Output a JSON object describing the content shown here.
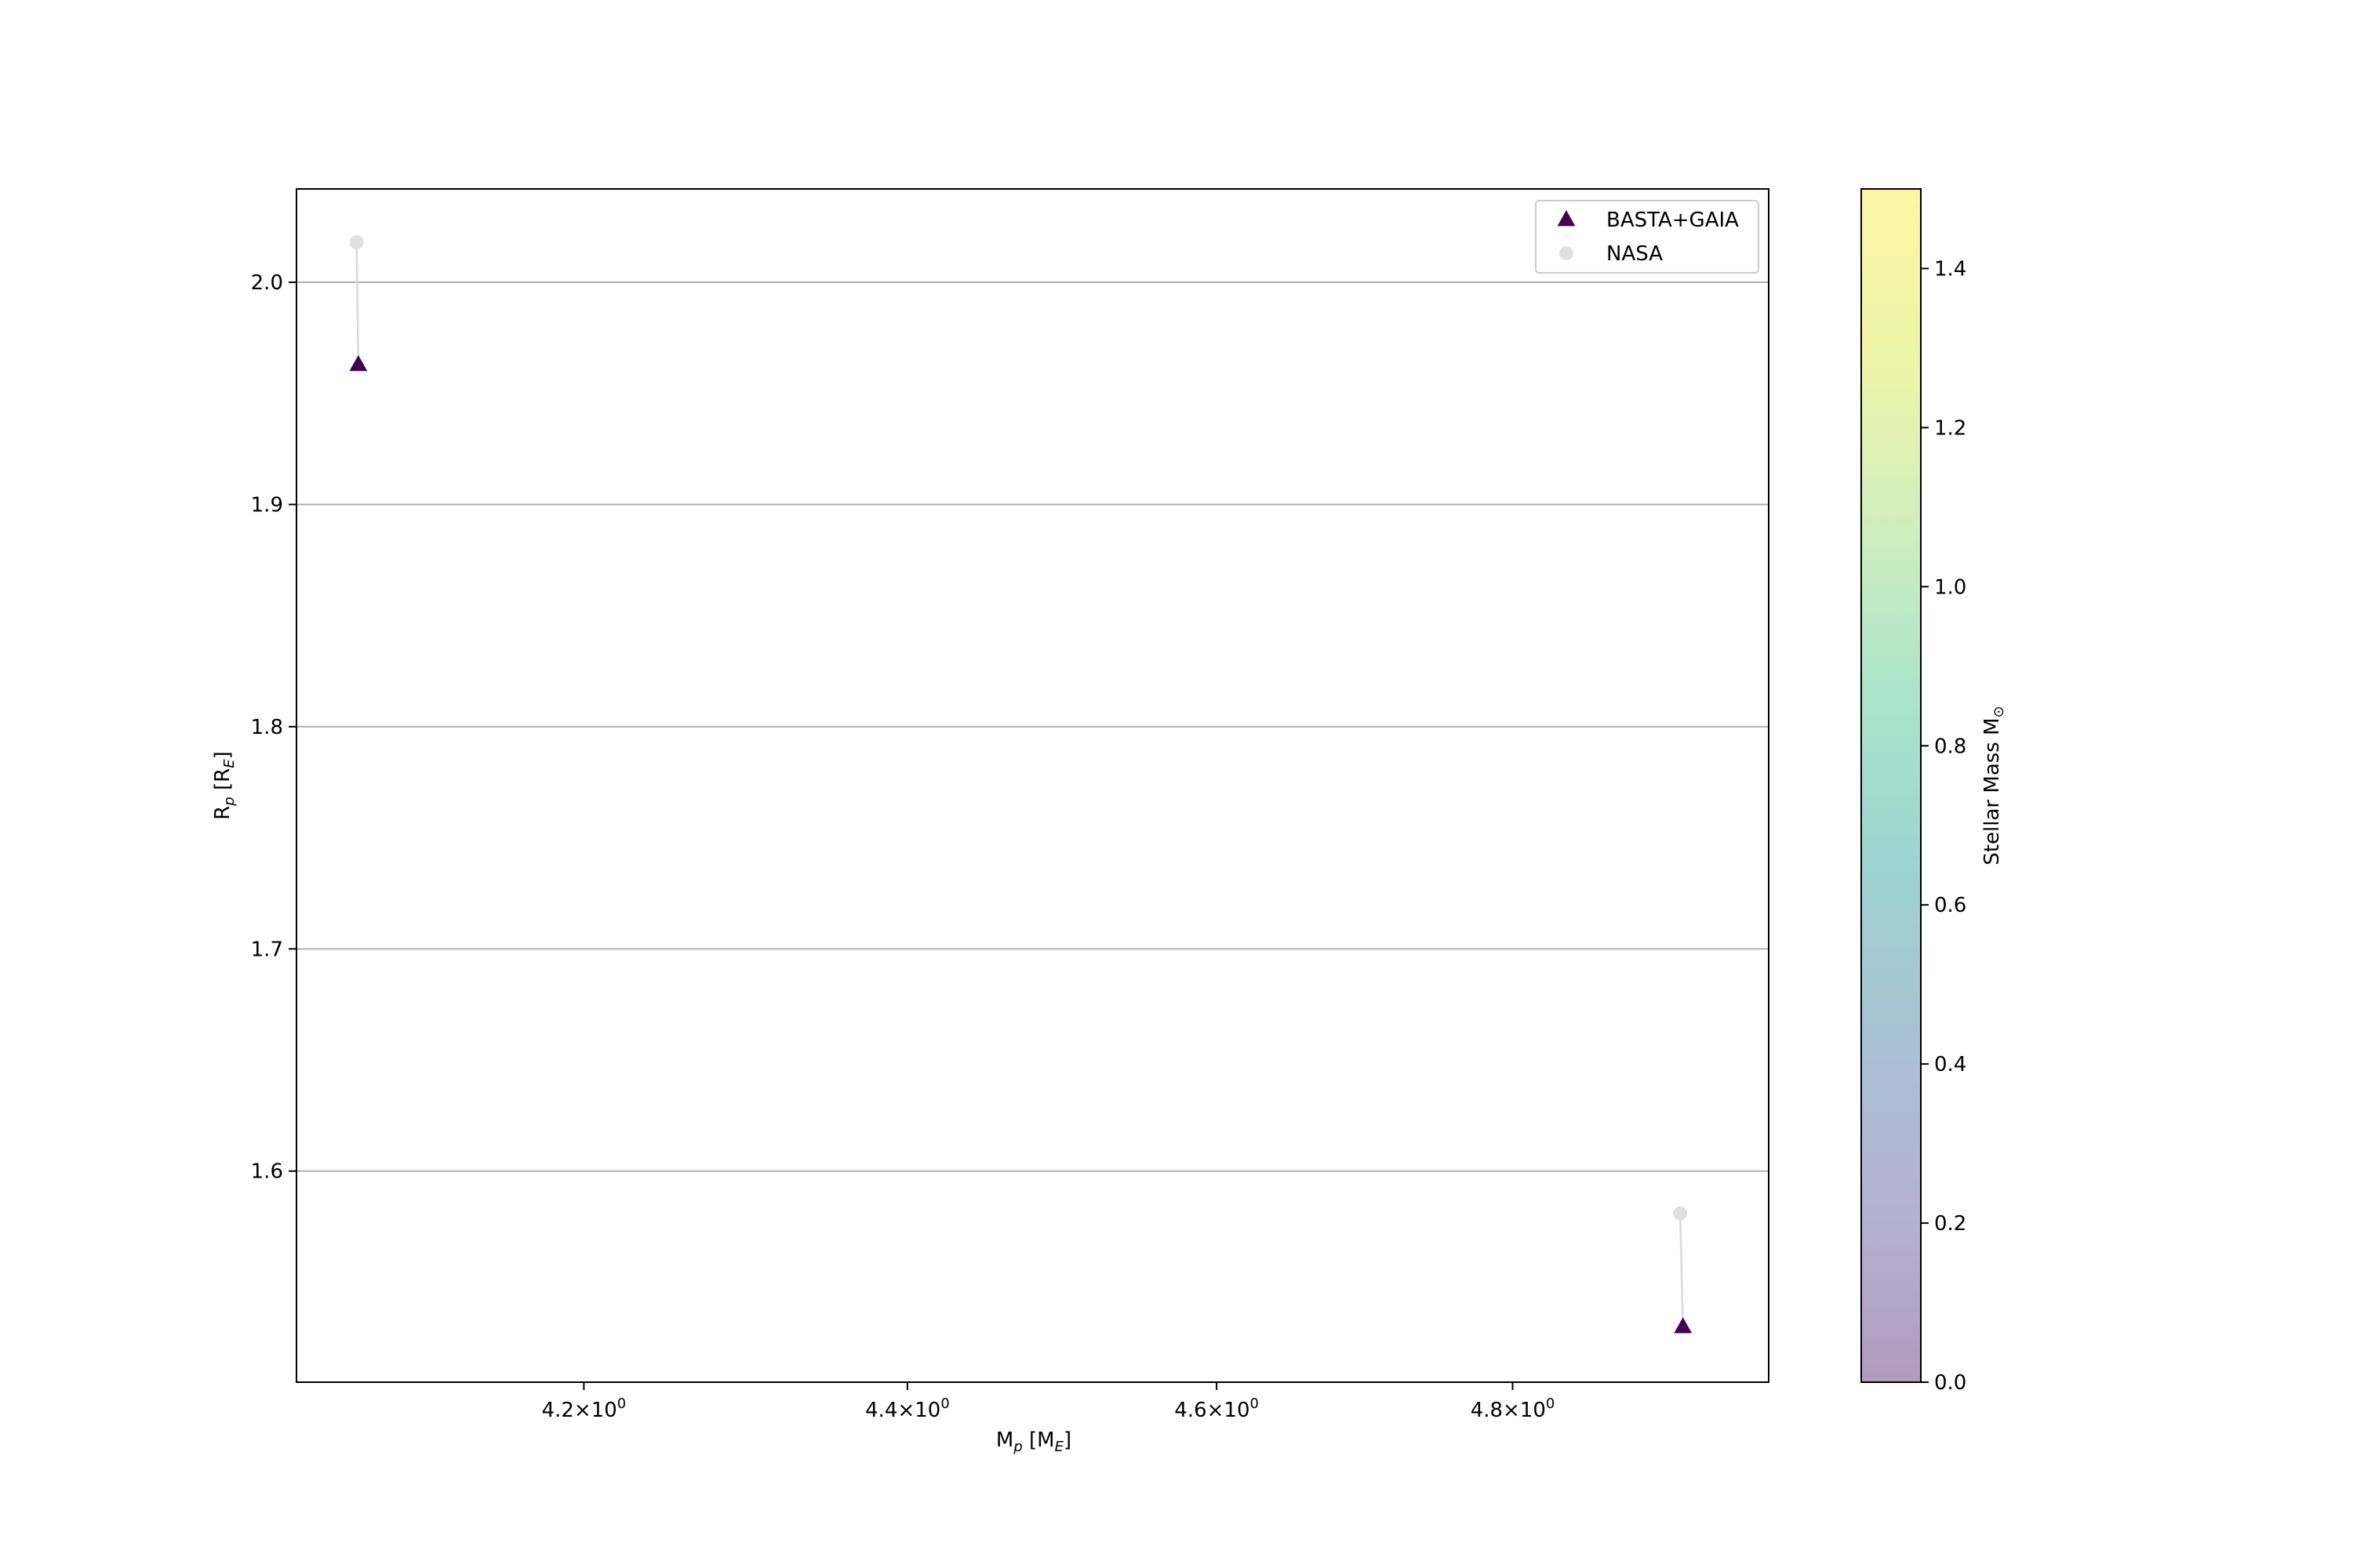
{
  "chart_data": {
    "type": "scatter",
    "xscale": "log",
    "xlabel": {
      "main": "M",
      "sub": "p",
      "rest": " [M",
      "sub2": "E",
      "end": "]"
    },
    "ylabel": {
      "main": "R",
      "sub": "p",
      "rest": " [R",
      "sub2": "E",
      "end": "]"
    },
    "xlim": [
      4.03,
      4.98
    ],
    "ylim": [
      1.505,
      2.042
    ],
    "xticks": [
      {
        "value": 4.2,
        "label": "4.2"
      },
      {
        "value": 4.4,
        "label": "4.4"
      },
      {
        "value": 4.6,
        "label": "4.6"
      },
      {
        "value": 4.8,
        "label": "4.8"
      }
    ],
    "xtick_suffix": {
      "times": "×10",
      "exp": "0"
    },
    "yticks": [
      {
        "value": 1.6,
        "label": "1.6"
      },
      {
        "value": 1.7,
        "label": "1.7"
      },
      {
        "value": 1.8,
        "label": "1.8"
      },
      {
        "value": 1.9,
        "label": "1.9"
      },
      {
        "value": 2.0,
        "label": "2.0"
      }
    ],
    "grid": "y",
    "legend_position": "top-right",
    "series": [
      {
        "name": "BASTA+GAIA",
        "marker": "triangle",
        "color": "#440154",
        "points": [
          {
            "x": 4.066,
            "y": 1.963
          },
          {
            "x": 4.919,
            "y": 1.53
          }
        ]
      },
      {
        "name": "NASA",
        "marker": "circle",
        "color": "#e0e0e0",
        "points": [
          {
            "x": 4.065,
            "y": 2.018
          },
          {
            "x": 4.917,
            "y": 1.581
          }
        ]
      }
    ],
    "connectors_color": "#d9d9d9",
    "colorbar": {
      "label": {
        "main": "Stellar Mass M",
        "sub": "⊙"
      },
      "range": [
        0.0,
        1.5
      ],
      "ticks": [
        {
          "value": 0.0,
          "label": "0.0"
        },
        {
          "value": 0.2,
          "label": "0.2"
        },
        {
          "value": 0.4,
          "label": "0.4"
        },
        {
          "value": 0.6,
          "label": "0.6"
        },
        {
          "value": 0.8,
          "label": "0.8"
        },
        {
          "value": 1.0,
          "label": "1.0"
        },
        {
          "value": 1.2,
          "label": "1.2"
        },
        {
          "value": 1.4,
          "label": "1.4"
        }
      ],
      "colors": [
        "#b29bbb",
        "#b4b2d4",
        "#a9c1d3",
        "#9dd3d1",
        "#aae4cb",
        "#cfeebe",
        "#eef5a8",
        "#fcf5a6"
      ]
    }
  }
}
